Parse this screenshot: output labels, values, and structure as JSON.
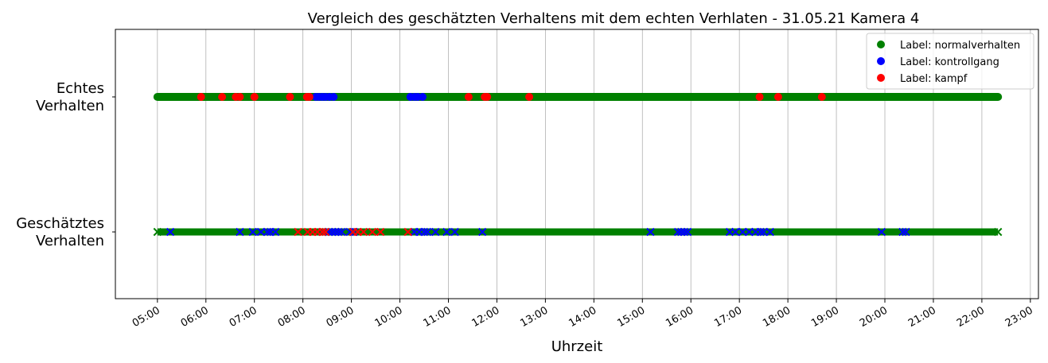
{
  "chart_data": {
    "type": "scatter",
    "title": "Vergleich des geschätzten Verhaltens mit dem echten Verhlaten - 31.05.21 Kamera 4",
    "xlabel": "Uhrzeit",
    "ylabel": "",
    "xlim": [
      "04:08",
      "23:10"
    ],
    "x_ticks": [
      "05:00",
      "06:00",
      "07:00",
      "08:00",
      "09:00",
      "10:00",
      "11:00",
      "12:00",
      "13:00",
      "14:00",
      "15:00",
      "16:00",
      "17:00",
      "18:00",
      "19:00",
      "20:00",
      "21:00",
      "22:00",
      "23:00"
    ],
    "y_categories": [
      {
        "key": "geschaetzt",
        "label": [
          "Geschätztes",
          "Verhalten"
        ],
        "marker": "x"
      },
      {
        "key": "echt",
        "label": [
          "Echtes",
          "Verhalten"
        ],
        "marker": "o"
      }
    ],
    "grid": "x",
    "legend_position": "top-right",
    "colors": {
      "normalverhalten": "#008000",
      "kontrollgang": "#0000ff",
      "kampf": "#ff0000"
    },
    "series": [
      {
        "name": "Label: normalverhalten",
        "key": "normalverhalten",
        "row": "echt",
        "ranges": [
          [
            "05:00",
            "22:20"
          ]
        ]
      },
      {
        "name": "Label: kontrollgang",
        "key": "kontrollgang",
        "row": "echt",
        "x": [
          "08:16",
          "08:20",
          "08:24",
          "08:28",
          "08:33",
          "08:38",
          "10:13",
          "10:18",
          "10:22",
          "10:28"
        ]
      },
      {
        "name": "Label: kampf",
        "key": "kampf",
        "row": "echt",
        "x": [
          "05:54",
          "06:20",
          "06:37",
          "06:42",
          "07:00",
          "07:44",
          "08:05",
          "08:08",
          "11:25",
          "11:45",
          "11:48",
          "12:40",
          "17:25",
          "17:48",
          "18:42"
        ]
      },
      {
        "name": "",
        "key": "normalverhalten",
        "row": "geschaetzt",
        "ranges": [
          [
            "05:00",
            "22:20"
          ]
        ]
      },
      {
        "name": "",
        "key": "kontrollgang",
        "row": "geschaetzt",
        "x": [
          "05:16",
          "06:42",
          "06:58",
          "07:08",
          "07:16",
          "07:20",
          "07:26",
          "08:24",
          "08:32",
          "08:36",
          "08:40",
          "08:44",
          "08:48",
          "08:58",
          "09:03",
          "10:18",
          "10:24",
          "10:30",
          "10:34",
          "10:44",
          "10:58",
          "11:08",
          "11:42",
          "15:10",
          "15:44",
          "15:48",
          "15:52",
          "15:56",
          "16:48",
          "16:55",
          "17:04",
          "17:12",
          "17:20",
          "17:26",
          "17:30",
          "17:38",
          "19:56",
          "20:22",
          "20:26"
        ]
      },
      {
        "name": "",
        "key": "kampf",
        "row": "geschaetzt",
        "x": [
          "07:54",
          "08:06",
          "08:12",
          "08:18",
          "08:24",
          "08:28",
          "09:02",
          "09:08",
          "09:15",
          "09:26",
          "09:36",
          "10:10"
        ]
      }
    ]
  }
}
